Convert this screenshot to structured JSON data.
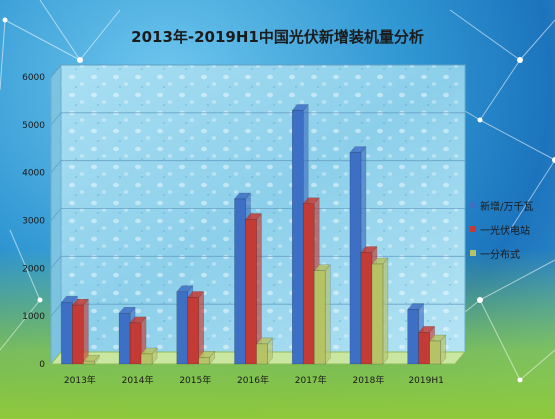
{
  "chart_data": {
    "type": "bar",
    "title": "2013年-2019H1中国光伏新增装机量分析",
    "categories": [
      "2013年",
      "2014年",
      "2015年",
      "2016年",
      "2017年",
      "2018年",
      "2019H1"
    ],
    "series": [
      {
        "name": "新增/万千瓦",
        "color": "#3d6fc4",
        "values": [
          1290,
          1060,
          1510,
          3450,
          5300,
          4420,
          1140
        ]
      },
      {
        "name": "一光伏电站",
        "color": "#c43a34",
        "values": [
          1230,
          860,
          1390,
          3020,
          3350,
          2330,
          660
        ]
      },
      {
        "name": "一分布式",
        "color": "#b5c265",
        "values": [
          60,
          210,
          140,
          420,
          1950,
          2090,
          480
        ]
      }
    ],
    "ylim": [
      0,
      6000
    ],
    "yticks": [
      0,
      1000,
      2000,
      3000,
      4000,
      5000,
      6000
    ],
    "xlabel": "",
    "ylabel": "",
    "grid": true,
    "legend_position": "right"
  }
}
